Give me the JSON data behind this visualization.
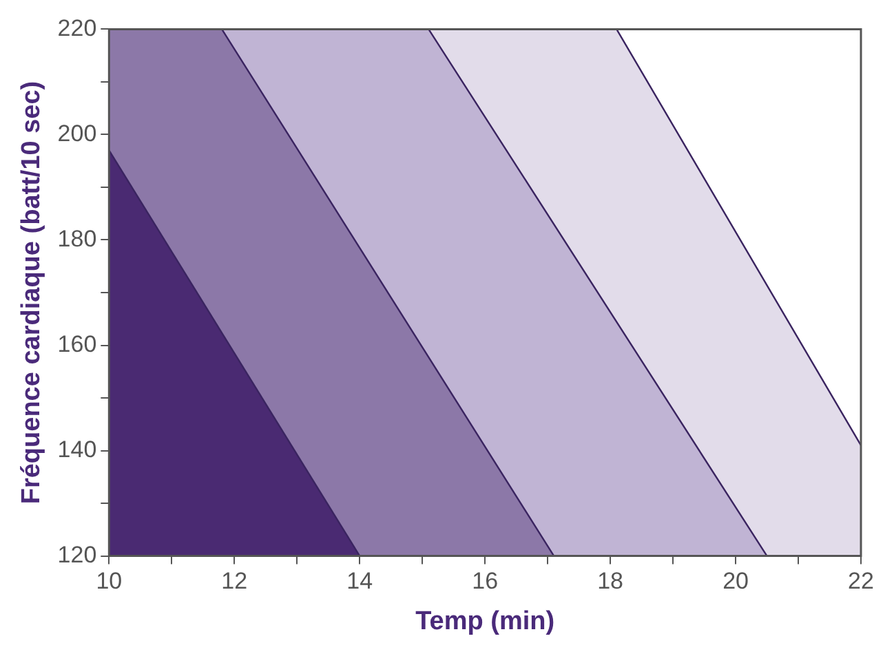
{
  "chart_data": {
    "type": "area",
    "xlabel": "Temp (min)",
    "ylabel": "Fréquence cardiaque (batt/10 sec)",
    "xlim": [
      10,
      22
    ],
    "ylim": [
      120,
      220
    ],
    "xticks": [
      10,
      {
        "value": 11,
        "label": null
      },
      12,
      {
        "value": 13,
        "label": null
      },
      14,
      {
        "value": 15,
        "label": null
      },
      16,
      {
        "value": 17,
        "label": null
      },
      18,
      {
        "value": 19,
        "label": null
      },
      20,
      {
        "value": 21,
        "label": null
      },
      22
    ],
    "yticks": [
      120,
      {
        "value": 130,
        "label": null
      },
      140,
      {
        "value": 150,
        "label": null
      },
      160,
      {
        "value": 170,
        "label": null
      },
      180,
      {
        "value": 190,
        "label": null
      },
      200,
      {
        "value": 210,
        "label": null
      },
      220
    ],
    "grid": false,
    "legend": false,
    "series": [
      {
        "color": "#4a2a72",
        "x": [
          10,
          14
        ],
        "values": [
          197,
          120
        ]
      },
      {
        "color": "#8c78a8",
        "x": [
          10,
          11.8,
          17.1
        ],
        "values": [
          220,
          220,
          120
        ]
      },
      {
        "color": "#c0b4d4",
        "x": [
          11.8,
          15.1,
          20.5
        ],
        "values": [
          220,
          220,
          120
        ]
      },
      {
        "color": "#e2dcea",
        "x": [
          15.1,
          18.1,
          22
        ],
        "values": [
          220,
          220,
          141
        ]
      }
    ]
  }
}
